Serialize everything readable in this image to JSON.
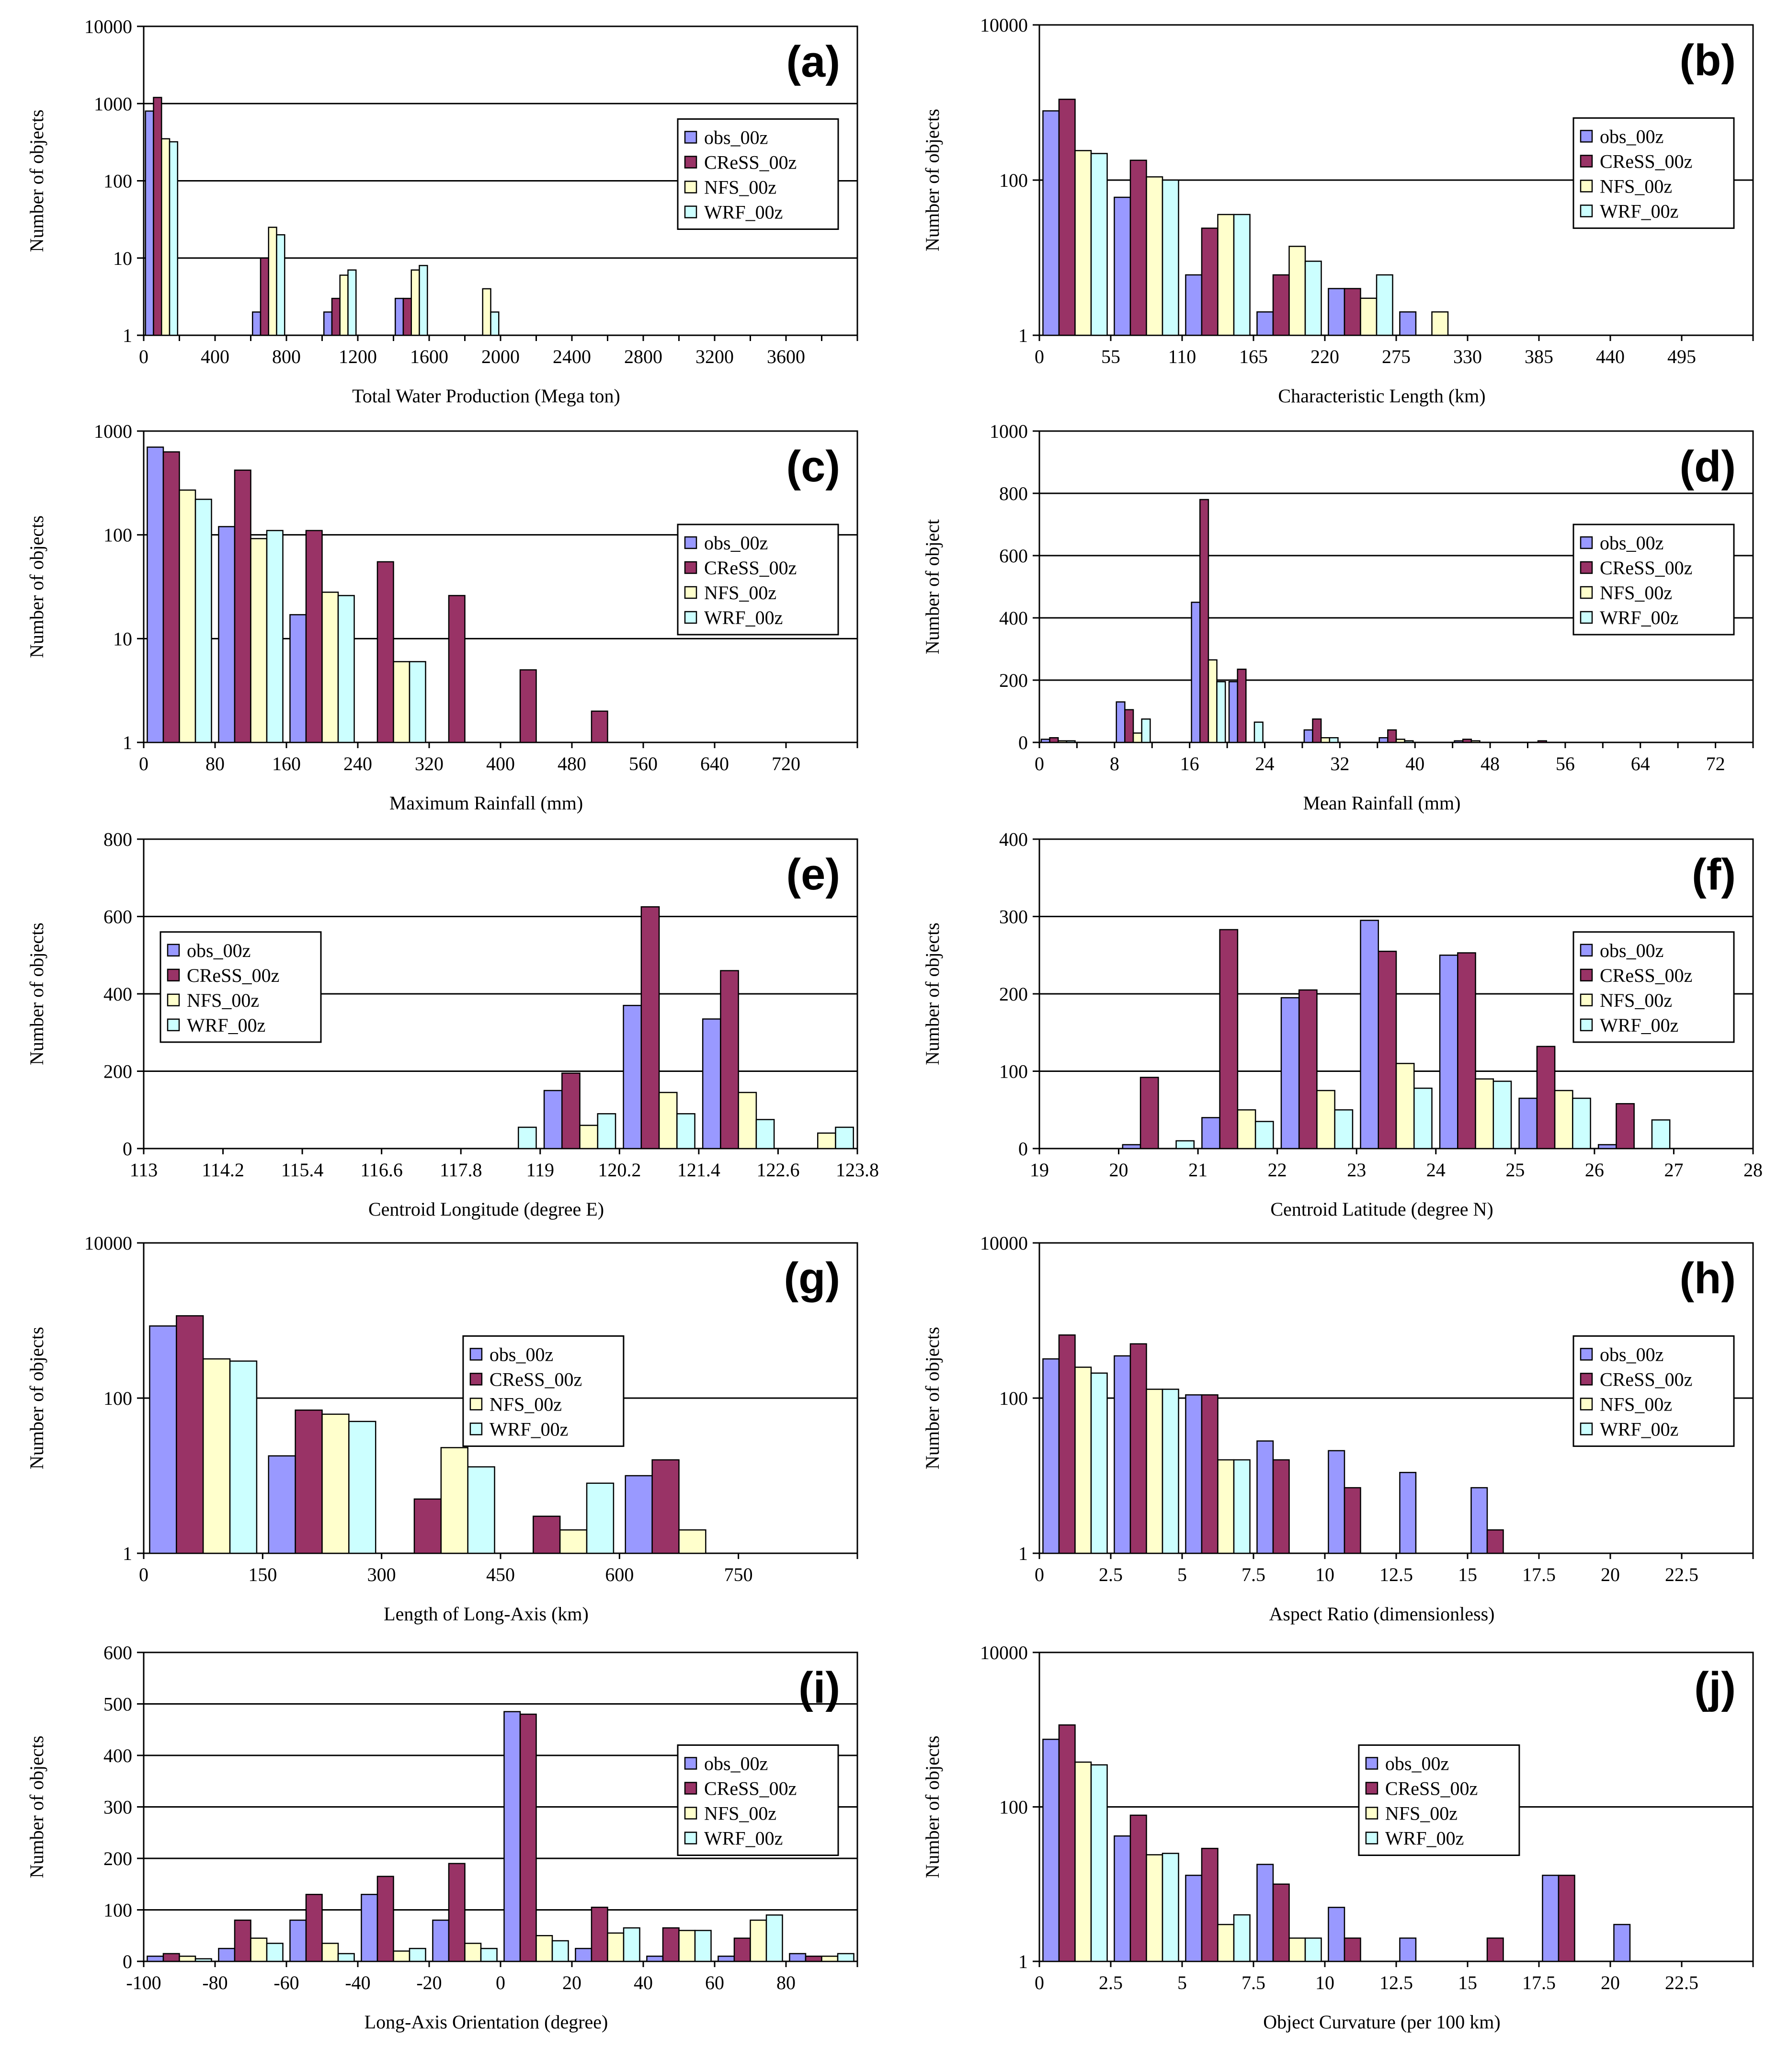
{
  "colors": {
    "obs": "#9999ff",
    "cress": "#993366",
    "nfs": "#ffffcc",
    "wrf": "#ccffff",
    "grid": "#000000",
    "background": "#ffffff"
  },
  "chart_data": [
    {
      "type": "bar",
      "panel": "(a)",
      "log": true,
      "ylim": [
        1,
        10000
      ],
      "yticks": [
        "1",
        "10",
        "100",
        "1000",
        "10000"
      ],
      "xlabel": "Total Water Production (Mega ton)",
      "ylabel": "Number of objects",
      "xticks": [
        "0",
        "400",
        "800",
        "1200",
        "1600",
        "2000",
        "2400",
        "2800",
        "3200",
        "3600"
      ],
      "nbins": 20,
      "tickEvery": 2,
      "legendPos": "right",
      "series": [
        {
          "name": "obs_00z",
          "values": [
            800,
            0,
            0,
            2,
            0,
            2,
            0,
            3,
            0,
            0,
            0,
            0,
            0,
            0,
            0,
            0,
            0,
            0,
            0,
            0
          ]
        },
        {
          "name": "CReSS_00z",
          "values": [
            1200,
            0,
            0,
            10,
            0,
            3,
            0,
            3,
            0,
            0,
            0,
            0,
            0,
            0,
            0,
            0,
            0,
            0,
            0,
            0
          ]
        },
        {
          "name": "NFS_00z",
          "values": [
            350,
            0,
            0,
            25,
            0,
            6,
            0,
            7,
            0,
            4,
            0,
            0,
            0,
            0,
            0,
            0,
            0,
            0,
            0,
            0
          ]
        },
        {
          "name": "WRF_00z",
          "values": [
            320,
            0,
            0,
            20,
            0,
            7,
            0,
            8,
            0,
            2,
            0,
            0,
            0,
            0,
            0,
            0,
            0,
            0,
            0,
            0
          ]
        }
      ]
    },
    {
      "type": "bar",
      "panel": "(b)",
      "log": true,
      "ylim": [
        1,
        10000
      ],
      "yticks": [
        "1",
        "100",
        "10000"
      ],
      "xlabel": "Characteristic Length (km)",
      "ylabel": "Number of objects",
      "xticks": [
        "0",
        "55",
        "110",
        "165",
        "220",
        "275",
        "330",
        "385",
        "440",
        "495"
      ],
      "nbins": 10,
      "tickEvery": 1,
      "legendPos": "right",
      "series": [
        {
          "name": "obs_00z",
          "values": [
            780,
            60,
            6,
            2,
            4,
            2,
            0,
            0,
            0,
            0
          ]
        },
        {
          "name": "CReSS_00z",
          "values": [
            1100,
            180,
            24,
            6,
            4,
            0,
            0,
            0,
            0,
            0
          ]
        },
        {
          "name": "NFS_00z",
          "values": [
            240,
            110,
            36,
            14,
            3,
            2,
            0,
            0,
            0,
            0
          ]
        },
        {
          "name": "WRF_00z",
          "values": [
            220,
            100,
            36,
            9,
            6,
            0,
            0,
            0,
            0,
            0
          ]
        }
      ]
    },
    {
      "type": "bar",
      "panel": "(c)",
      "log": true,
      "ylim": [
        1,
        1000
      ],
      "yticks": [
        "1",
        "10",
        "100",
        "1000"
      ],
      "xlabel": "Maximum Rainfall (mm)",
      "ylabel": "Number of objects",
      "xticks": [
        "0",
        "80",
        "160",
        "240",
        "320",
        "400",
        "480",
        "560",
        "640",
        "720"
      ],
      "nbins": 10,
      "tickEvery": 1,
      "legendPos": "right",
      "series": [
        {
          "name": "obs_00z",
          "values": [
            700,
            120,
            17,
            0,
            0,
            0,
            0,
            0,
            0,
            0
          ]
        },
        {
          "name": "CReSS_00z",
          "values": [
            630,
            420,
            110,
            55,
            26,
            5,
            2,
            0,
            0,
            0
          ]
        },
        {
          "name": "NFS_00z",
          "values": [
            270,
            92,
            28,
            6,
            0,
            0,
            0,
            0,
            0,
            0
          ]
        },
        {
          "name": "WRF_00z",
          "values": [
            220,
            110,
            26,
            6,
            0,
            0,
            0,
            0,
            0,
            0
          ]
        }
      ]
    },
    {
      "type": "bar",
      "panel": "(d)",
      "log": false,
      "ylim": [
        0,
        1000
      ],
      "yticks": [
        "0",
        "200",
        "400",
        "600",
        "800",
        "1000"
      ],
      "xlabel": "Mean Rainfall (mm)",
      "ylabel": "Number of object",
      "xticks": [
        "0",
        "8",
        "16",
        "24",
        "32",
        "40",
        "48",
        "56",
        "64",
        "72"
      ],
      "nbins": 19,
      "tickEvery": 2,
      "legendPos": "right",
      "series": [
        {
          "name": "obs_00z",
          "values": [
            10,
            0,
            130,
            0,
            450,
            195,
            0,
            40,
            0,
            15,
            0,
            5,
            0,
            0,
            0,
            0,
            0,
            0,
            0
          ]
        },
        {
          "name": "CReSS_00z",
          "values": [
            15,
            0,
            105,
            0,
            780,
            235,
            0,
            75,
            0,
            40,
            0,
            10,
            0,
            5,
            0,
            0,
            0,
            0,
            0
          ]
        },
        {
          "name": "NFS_00z",
          "values": [
            5,
            0,
            30,
            0,
            265,
            0,
            0,
            15,
            0,
            10,
            0,
            5,
            0,
            0,
            0,
            0,
            0,
            0,
            0
          ]
        },
        {
          "name": "WRF_00z",
          "values": [
            5,
            0,
            75,
            0,
            195,
            65,
            0,
            15,
            0,
            5,
            0,
            0,
            0,
            0,
            0,
            0,
            0,
            0,
            0
          ]
        }
      ]
    },
    {
      "type": "bar",
      "panel": "(e)",
      "log": false,
      "ylim": [
        0,
        800
      ],
      "yticks": [
        "0",
        "200",
        "400",
        "600",
        "800"
      ],
      "xlabel": "Centroid Longitude (degree E)",
      "ylabel": "Number of objects",
      "xticks": [
        "113",
        "114.2",
        "115.4",
        "116.6",
        "117.8",
        "119",
        "120.2",
        "121.4",
        "122.6",
        "123.8"
      ],
      "nbins": 9,
      "tickEvery": 1,
      "legendPos": "left",
      "series": [
        {
          "name": "obs_00z",
          "values": [
            0,
            0,
            0,
            0,
            0,
            150,
            370,
            335,
            0
          ]
        },
        {
          "name": "CReSS_00z",
          "values": [
            0,
            0,
            0,
            0,
            0,
            195,
            625,
            460,
            0
          ]
        },
        {
          "name": "NFS_00z",
          "values": [
            0,
            0,
            0,
            0,
            0,
            60,
            145,
            145,
            40
          ]
        },
        {
          "name": "WRF_00z",
          "values": [
            0,
            0,
            0,
            0,
            55,
            90,
            90,
            75,
            55
          ]
        }
      ]
    },
    {
      "type": "bar",
      "panel": "(f)",
      "log": false,
      "ylim": [
        0,
        400
      ],
      "yticks": [
        "0",
        "100",
        "200",
        "300",
        "400"
      ],
      "xlabel": "Centroid Latitude (degree N)",
      "ylabel": "Number of objects",
      "xticks": [
        "19",
        "20",
        "21",
        "22",
        "23",
        "24",
        "25",
        "26",
        "27",
        "28"
      ],
      "nbins": 9,
      "tickEvery": 1,
      "legendPos": "right",
      "series": [
        {
          "name": "obs_00z",
          "values": [
            0,
            5,
            40,
            195,
            295,
            250,
            65,
            5,
            0
          ]
        },
        {
          "name": "CReSS_00z",
          "values": [
            0,
            92,
            283,
            205,
            255,
            253,
            132,
            58,
            0
          ]
        },
        {
          "name": "NFS_00z",
          "values": [
            0,
            0,
            50,
            75,
            110,
            90,
            75,
            0,
            0
          ]
        },
        {
          "name": "WRF_00z",
          "values": [
            0,
            10,
            35,
            50,
            78,
            87,
            65,
            37,
            0
          ]
        }
      ]
    },
    {
      "type": "bar",
      "panel": "(g)",
      "log": true,
      "ylim": [
        1,
        10000
      ],
      "yticks": [
        "1",
        "100",
        "10000"
      ],
      "xlabel": "Length of Long-Axis (km)",
      "ylabel": "Number of objects",
      "xticks": [
        "0",
        "150",
        "300",
        "450",
        "600",
        "750"
      ],
      "nbins": 6,
      "tickEvery": 1,
      "legendPos": "mid",
      "series": [
        {
          "name": "obs_00z",
          "values": [
            850,
            18,
            0,
            0,
            10,
            0
          ]
        },
        {
          "name": "CReSS_00z",
          "values": [
            1150,
            70,
            5,
            3,
            16,
            0
          ]
        },
        {
          "name": "NFS_00z",
          "values": [
            320,
            62,
            23,
            2,
            2,
            0
          ]
        },
        {
          "name": "WRF_00z",
          "values": [
            300,
            50,
            13,
            8,
            0,
            0
          ]
        }
      ]
    },
    {
      "type": "bar",
      "panel": "(h)",
      "log": true,
      "ylim": [
        1,
        10000
      ],
      "yticks": [
        "1",
        "100",
        "10000"
      ],
      "xlabel": "Aspect Ratio (dimensionless)",
      "ylabel": "Number of objects",
      "xticks": [
        "0",
        "2.5",
        "5",
        "7.5",
        "10",
        "12.5",
        "15",
        "17.5",
        "20",
        "22.5"
      ],
      "nbins": 10,
      "tickEvery": 1,
      "legendPos": "right",
      "series": [
        {
          "name": "obs_00z",
          "values": [
            320,
            350,
            110,
            28,
            21,
            11,
            7,
            0,
            0,
            0
          ]
        },
        {
          "name": "CReSS_00z",
          "values": [
            650,
            500,
            110,
            16,
            7,
            0,
            2,
            0,
            0,
            0
          ]
        },
        {
          "name": "NFS_00z",
          "values": [
            250,
            130,
            16,
            0,
            0,
            0,
            0,
            0,
            0,
            0
          ]
        },
        {
          "name": "WRF_00z",
          "values": [
            210,
            130,
            16,
            0,
            0,
            0,
            0,
            0,
            0,
            0
          ]
        }
      ]
    },
    {
      "type": "bar",
      "panel": "(i)",
      "log": false,
      "ylim": [
        0,
        600
      ],
      "yticks": [
        "0",
        "100",
        "200",
        "300",
        "400",
        "500",
        "600"
      ],
      "xlabel": "Long-Axis Orientation (degree)",
      "ylabel": "Number of objects",
      "xticks": [
        "-100",
        "-80",
        "-60",
        "-40",
        "-20",
        "0",
        "20",
        "40",
        "60",
        "80"
      ],
      "nbins": 10,
      "tickEvery": 1,
      "legendPos": "right",
      "series": [
        {
          "name": "obs_00z",
          "values": [
            10,
            25,
            80,
            130,
            80,
            485,
            25,
            10,
            10,
            15
          ]
        },
        {
          "name": "CReSS_00z",
          "values": [
            15,
            80,
            130,
            165,
            190,
            480,
            105,
            65,
            45,
            10
          ]
        },
        {
          "name": "NFS_00z",
          "values": [
            10,
            45,
            35,
            20,
            35,
            50,
            55,
            60,
            80,
            10
          ]
        },
        {
          "name": "WRF_00z",
          "values": [
            5,
            35,
            15,
            25,
            25,
            40,
            65,
            60,
            90,
            15
          ]
        }
      ]
    },
    {
      "type": "bar",
      "panel": "(j)",
      "log": true,
      "ylim": [
        1,
        10000
      ],
      "yticks": [
        "1",
        "100",
        "10000"
      ],
      "xlabel": "Object Curvature (per 100 km)",
      "ylabel": "Number of objects",
      "xticks": [
        "0",
        "2.5",
        "5",
        "7.5",
        "10",
        "12.5",
        "15",
        "17.5",
        "20",
        "22.5"
      ],
      "nbins": 10,
      "tickEvery": 1,
      "legendPos": "mid",
      "series": [
        {
          "name": "obs_00z",
          "values": [
            750,
            42,
            13,
            18,
            5,
            2,
            0,
            13,
            3,
            0
          ]
        },
        {
          "name": "CReSS_00z",
          "values": [
            1150,
            78,
            29,
            10,
            2,
            0,
            2,
            13,
            0,
            0
          ]
        },
        {
          "name": "NFS_00z",
          "values": [
            380,
            24,
            3,
            2,
            0,
            0,
            0,
            0,
            0,
            0
          ]
        },
        {
          "name": "WRF_00z",
          "values": [
            350,
            25,
            4,
            2,
            0,
            0,
            0,
            0,
            0,
            0
          ]
        }
      ]
    }
  ]
}
